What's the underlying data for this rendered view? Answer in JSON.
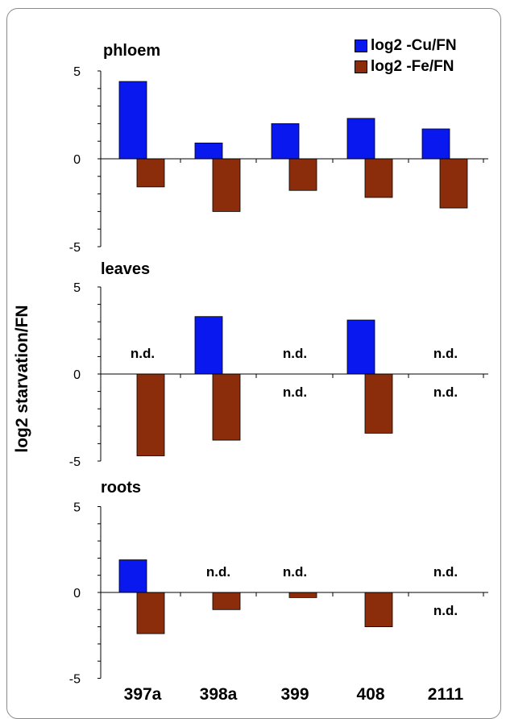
{
  "colors": {
    "cu": "#0a18f0",
    "fe": "#8b2d0b"
  },
  "legend": [
    {
      "label": "log2 -Cu/FN",
      "color": "#0a18f0"
    },
    {
      "label": "log2 -Fe/FN",
      "color": "#8b2d0b"
    }
  ],
  "y_axis_label": "log2 starvation/FN",
  "chart_data": [
    {
      "type": "bar",
      "title": "phloem",
      "categories": [
        "397a",
        "398a",
        "399",
        "408",
        "2111"
      ],
      "ylim": [
        -5,
        5
      ],
      "yticks": [
        5,
        0,
        -5
      ],
      "grid": false,
      "series": [
        {
          "name": "log2 -Cu/FN",
          "values": [
            4.4,
            0.9,
            2.0,
            2.3,
            1.7
          ]
        },
        {
          "name": "log2 -Fe/FN",
          "values": [
            -1.6,
            -3.0,
            -1.8,
            -2.2,
            -2.8
          ]
        }
      ],
      "annotations": []
    },
    {
      "type": "bar",
      "title": "leaves",
      "categories": [
        "397a",
        "398a",
        "399",
        "408",
        "2111"
      ],
      "ylim": [
        -5,
        5
      ],
      "yticks": [
        5,
        0,
        -5
      ],
      "grid": false,
      "series": [
        {
          "name": "log2 -Cu/FN",
          "values": [
            null,
            3.3,
            null,
            3.1,
            null
          ]
        },
        {
          "name": "log2 -Fe/FN",
          "values": [
            -4.7,
            -3.8,
            null,
            -3.4,
            null
          ]
        }
      ],
      "annotations": [
        {
          "category": "397a",
          "series": "log2 -Cu/FN",
          "text": "n.d."
        },
        {
          "category": "399",
          "series": "log2 -Cu/FN",
          "text": "n.d."
        },
        {
          "category": "399",
          "series": "log2 -Fe/FN",
          "text": "n.d."
        },
        {
          "category": "2111",
          "series": "log2 -Cu/FN",
          "text": "n.d."
        },
        {
          "category": "2111",
          "series": "log2 -Fe/FN",
          "text": "n.d."
        }
      ]
    },
    {
      "type": "bar",
      "title": "roots",
      "categories": [
        "397a",
        "398a",
        "399",
        "408",
        "2111"
      ],
      "ylim": [
        -5,
        5
      ],
      "yticks": [
        5,
        0,
        -5
      ],
      "grid": false,
      "series": [
        {
          "name": "log2 -Cu/FN",
          "values": [
            1.9,
            null,
            null,
            null,
            null
          ]
        },
        {
          "name": "log2 -Fe/FN",
          "values": [
            -2.4,
            -1.0,
            -0.3,
            -2.0,
            null
          ]
        }
      ],
      "annotations": [
        {
          "category": "398a",
          "series": "log2 -Cu/FN",
          "text": "n.d."
        },
        {
          "category": "399",
          "series": "log2 -Cu/FN",
          "text": "n.d."
        },
        {
          "category": "2111",
          "series": "log2 -Cu/FN",
          "text": "n.d."
        },
        {
          "category": "2111",
          "series": "log2 -Fe/FN",
          "text": "n.d."
        }
      ]
    }
  ]
}
